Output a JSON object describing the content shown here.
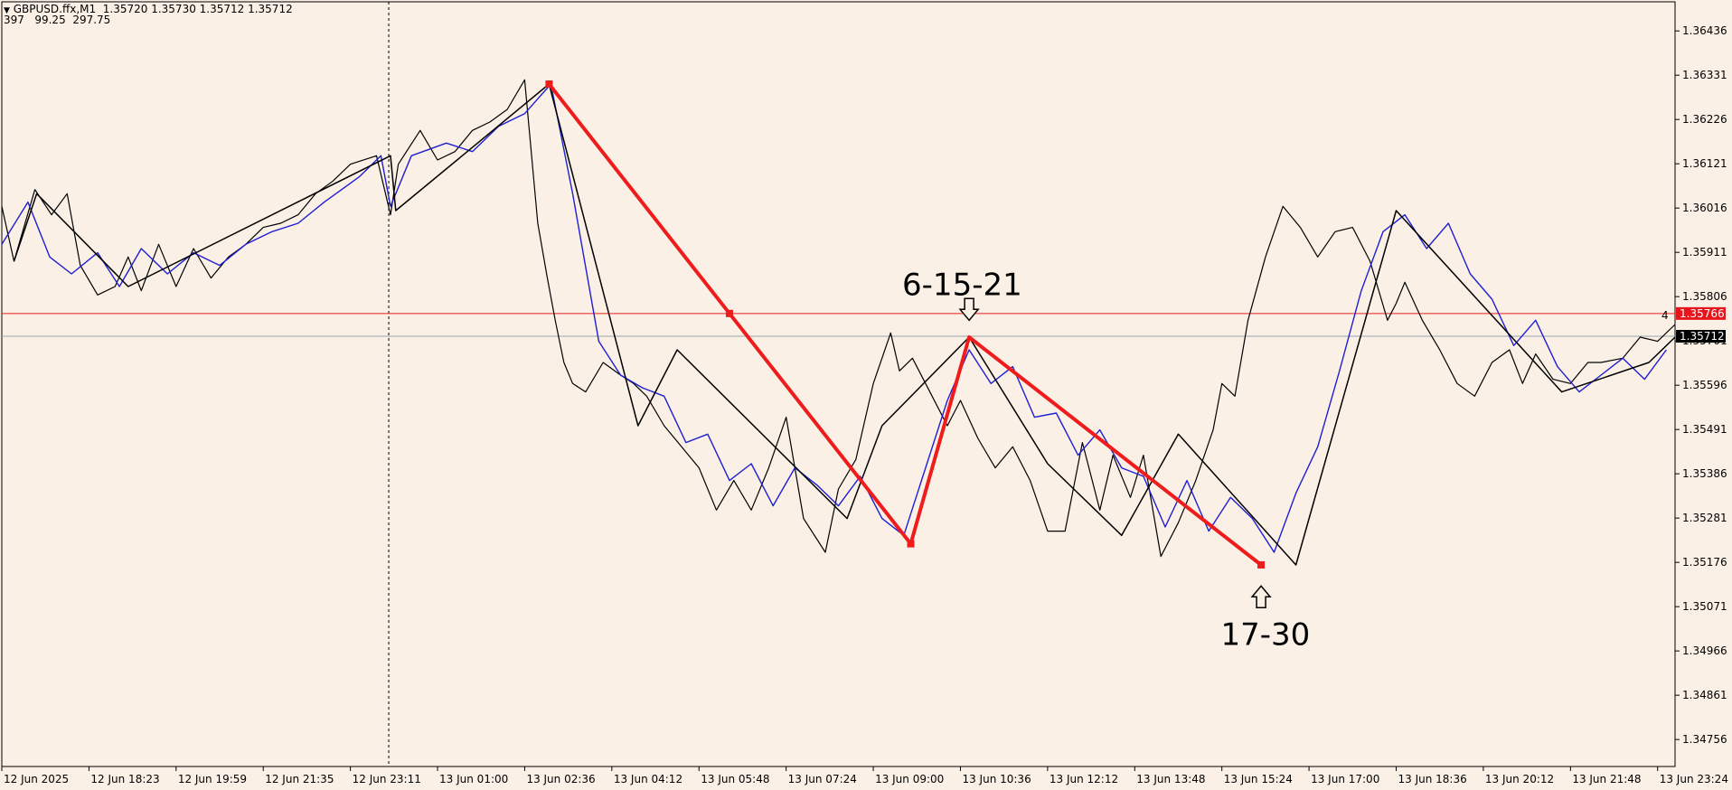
{
  "header": {
    "symbol_line": "GBPUSD.ffx,M1  1.35720 1.35730 1.35712 1.35712",
    "indicator_line": "397   99.25  297.75"
  },
  "colors": {
    "background": "#FAF0E6",
    "price": "#000000",
    "zigzag_blue": "#1F1FD2",
    "zigzag_black": "#000000",
    "red_line": "#EE1C1C",
    "current_price_line": "#9AA3AA"
  },
  "chart_data": {
    "type": "line",
    "ylim": [
      1.34692,
      1.36505
    ],
    "y_ticks": [
      "1.36436",
      "1.36331",
      "1.36226",
      "1.36121",
      "1.36016",
      "1.35911",
      "1.35806",
      "1.35701",
      "1.35596",
      "1.35491",
      "1.35386",
      "1.35281",
      "1.35176",
      "1.35071",
      "1.34966",
      "1.34861",
      "1.34756"
    ],
    "x_ticks": [
      "12 Jun 2025",
      "12 Jun 18:23",
      "12 Jun 19:59",
      "12 Jun 21:35",
      "12 Jun 23:11",
      "13 Jun 01:00",
      "13 Jun 02:36",
      "13 Jun 04:12",
      "13 Jun 05:48",
      "13 Jun 07:24",
      "13 Jun 09:00",
      "13 Jun 10:36",
      "13 Jun 12:12",
      "13 Jun 13:48",
      "13 Jun 15:24",
      "13 Jun 17:00",
      "13 Jun 18:36",
      "13 Jun 20:12",
      "13 Jun 21:48",
      "13 Jun 23:24"
    ],
    "x_tick_index": [
      0,
      1,
      2,
      3,
      4,
      5,
      6,
      7,
      8,
      9,
      10,
      11,
      12,
      13,
      14,
      15,
      16,
      17,
      18,
      19
    ],
    "x_range": [
      0,
      19.2
    ],
    "session_separator_index": 4.44,
    "horizontal_levels": {
      "red_level": {
        "price": 1.35766,
        "label": "1.35766",
        "count": "4"
      },
      "current_price": {
        "price": 1.35712,
        "label": "1.35712"
      }
    },
    "series": [
      {
        "role": "price",
        "x": [
          0,
          0.14,
          0.38,
          0.57,
          0.75,
          0.9,
          1.1,
          1.3,
          1.45,
          1.6,
          1.8,
          2.0,
          2.2,
          2.4,
          2.6,
          2.8,
          3.0,
          3.2,
          3.4,
          3.6,
          3.8,
          4.0,
          4.3,
          4.46,
          4.55,
          4.8,
          5.0,
          5.2,
          5.4,
          5.6,
          5.8,
          6.0,
          6.15,
          6.26,
          6.35,
          6.45,
          6.55,
          6.7,
          6.9,
          7.1,
          7.25,
          7.4,
          7.6,
          7.8,
          8.0,
          8.2,
          8.4,
          8.6,
          8.8,
          9.0,
          9.2,
          9.45,
          9.6,
          9.8,
          10.0,
          10.2,
          10.3,
          10.45,
          10.6,
          10.85,
          11.0,
          11.2,
          11.4,
          11.6,
          11.8,
          12.0,
          12.2,
          12.4,
          12.6,
          12.75,
          12.95,
          13.1,
          13.3,
          13.5,
          13.7,
          13.9,
          14.0,
          14.15,
          14.3,
          14.5,
          14.7,
          14.9,
          15.1,
          15.3,
          15.5,
          15.7,
          15.9,
          16.0,
          16.1,
          16.3,
          16.5,
          16.7,
          16.9,
          17.1,
          17.3,
          17.45,
          17.6,
          17.8,
          18.0,
          18.2,
          18.35,
          18.6,
          18.8,
          19.0,
          19.2
        ],
        "y": [
          1.3602,
          1.3589,
          1.3606,
          1.36,
          1.3605,
          1.3588,
          1.3581,
          1.3583,
          1.359,
          1.3582,
          1.3593,
          1.3583,
          1.3592,
          1.3585,
          1.359,
          1.3593,
          1.3597,
          1.3598,
          1.36,
          1.3605,
          1.3608,
          1.3612,
          1.3614,
          1.36,
          1.3612,
          1.362,
          1.3613,
          1.3615,
          1.362,
          1.3622,
          1.3625,
          1.3632,
          1.3598,
          1.3585,
          1.3575,
          1.3565,
          1.356,
          1.3558,
          1.3565,
          1.3562,
          1.356,
          1.3557,
          1.355,
          1.3545,
          1.354,
          1.353,
          1.3537,
          1.353,
          1.354,
          1.3552,
          1.3528,
          1.352,
          1.3535,
          1.3542,
          1.356,
          1.3572,
          1.3563,
          1.3566,
          1.356,
          1.355,
          1.3556,
          1.3547,
          1.354,
          1.3545,
          1.3537,
          1.3525,
          1.3525,
          1.3546,
          1.353,
          1.3543,
          1.3533,
          1.3543,
          1.3519,
          1.3527,
          1.3537,
          1.3549,
          1.356,
          1.3557,
          1.3575,
          1.359,
          1.3602,
          1.3597,
          1.359,
          1.3596,
          1.3597,
          1.3589,
          1.3575,
          1.3579,
          1.3584,
          1.3575,
          1.3568,
          1.356,
          1.3557,
          1.3565,
          1.3568,
          1.356,
          1.3567,
          1.3561,
          1.356,
          1.3565,
          1.3565,
          1.3566,
          1.3571,
          1.357,
          1.3574
        ]
      },
      {
        "role": "zigzag_blue",
        "x": [
          0,
          0.3,
          0.55,
          0.8,
          1.1,
          1.35,
          1.6,
          1.9,
          2.2,
          2.5,
          2.8,
          3.1,
          3.4,
          3.7,
          3.9,
          4.1,
          4.35,
          4.46,
          4.7,
          5.1,
          5.4,
          5.7,
          6.0,
          6.3,
          6.55,
          6.85,
          7.1,
          7.35,
          7.6,
          7.85,
          8.1,
          8.35,
          8.6,
          8.85,
          9.1,
          9.35,
          9.6,
          9.85,
          10.1,
          10.35,
          10.6,
          10.85,
          11.1,
          11.35,
          11.6,
          11.85,
          12.1,
          12.35,
          12.6,
          12.85,
          13.1,
          13.35,
          13.6,
          13.85,
          14.1,
          14.35,
          14.6,
          14.85,
          15.1,
          15.35,
          15.6,
          15.85,
          16.1,
          16.35,
          16.6,
          16.85,
          17.1,
          17.35,
          17.6,
          17.85,
          18.1,
          18.35,
          18.6,
          18.85,
          19.1
        ],
        "y": [
          1.3593,
          1.3603,
          1.359,
          1.3586,
          1.3591,
          1.3583,
          1.3592,
          1.3586,
          1.3591,
          1.3588,
          1.3593,
          1.3596,
          1.3598,
          1.3603,
          1.3606,
          1.3609,
          1.3614,
          1.3602,
          1.3614,
          1.3617,
          1.3615,
          1.3621,
          1.3624,
          1.3631,
          1.3605,
          1.357,
          1.3562,
          1.3559,
          1.3557,
          1.3546,
          1.3548,
          1.3537,
          1.3541,
          1.3531,
          1.354,
          1.3536,
          1.3531,
          1.3538,
          1.3528,
          1.3524,
          1.354,
          1.3556,
          1.3568,
          1.356,
          1.3564,
          1.3552,
          1.3553,
          1.3543,
          1.3549,
          1.354,
          1.3538,
          1.3526,
          1.3537,
          1.3525,
          1.3533,
          1.3528,
          1.352,
          1.3534,
          1.3545,
          1.3563,
          1.3582,
          1.3596,
          1.36,
          1.3592,
          1.3598,
          1.3586,
          1.358,
          1.3569,
          1.3575,
          1.3564,
          1.3558,
          1.3562,
          1.3566,
          1.3561,
          1.3568
        ]
      },
      {
        "role": "zigzag_black",
        "x": [
          0.14,
          0.4,
          1.45,
          4.46,
          4.52,
          6.28,
          7.3,
          7.75,
          9.7,
          10.1,
          11.1,
          12.0,
          12.85,
          13.5,
          14.85,
          16.0,
          17.9,
          18.9,
          19.2
        ],
        "y": [
          1.3589,
          1.3605,
          1.3583,
          1.3614,
          1.3601,
          1.3631,
          1.355,
          1.3568,
          1.3528,
          1.355,
          1.3571,
          1.3541,
          1.3524,
          1.3548,
          1.3517,
          1.3601,
          1.3558,
          1.3565,
          1.3571
        ]
      },
      {
        "role": "red_line",
        "x": [
          6.28,
          8.35,
          10.43,
          11.1,
          14.45
        ],
        "y": [
          1.3631,
          1.35766,
          1.3522,
          1.3571,
          1.3517
        ]
      }
    ],
    "annotations": [
      {
        "text": "6-15-21",
        "x": 11.02,
        "y": 1.3581,
        "arrow": "down",
        "arrow_x": 11.1,
        "arrow_y": 1.3575
      },
      {
        "text": "17-30",
        "x": 14.5,
        "y": 1.3498,
        "arrow": "up",
        "arrow_x": 14.45,
        "arrow_y": 1.3512
      }
    ]
  }
}
